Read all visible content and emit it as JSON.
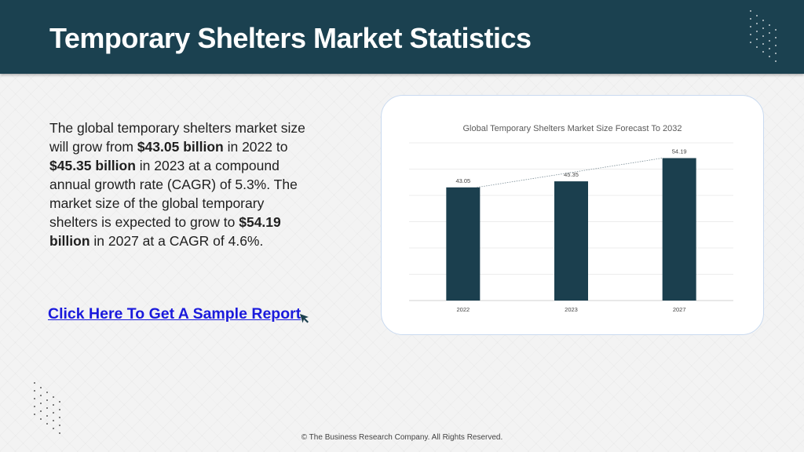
{
  "header": {
    "title": "Temporary Shelters Market Statistics"
  },
  "summary": {
    "p1": "The global temporary shelters market size will grow from ",
    "v1": "$43.05 billion",
    "p2": " in 2022 to ",
    "v2": "$45.35 billion",
    "p3": " in 2023 at a compound annual growth rate (CAGR) of 5.3%. The market size of the global temporary shelters is expected to grow to ",
    "v3": "$54.19 billion",
    "p4": " in 2027 at a CAGR of 4.6%."
  },
  "cta": {
    "label": "Click Here To Get A Sample Report"
  },
  "footer": {
    "text": "© The Business Research Company. All Rights Reserved."
  },
  "colors": {
    "header": "#1b4150",
    "bar": "#1b3f4e",
    "link": "#1a1adc"
  },
  "chart_data": {
    "type": "bar",
    "title": "Global Temporary Shelters Market Size Forecast To 2032",
    "categories": [
      "2022",
      "2023",
      "2027"
    ],
    "values": [
      43.05,
      45.35,
      54.19
    ],
    "data_labels": [
      "43.05",
      "45.35",
      "54.19"
    ],
    "ylim": [
      0,
      60
    ],
    "grid": true,
    "trendline": "dotted",
    "xlabel": "",
    "ylabel": ""
  }
}
